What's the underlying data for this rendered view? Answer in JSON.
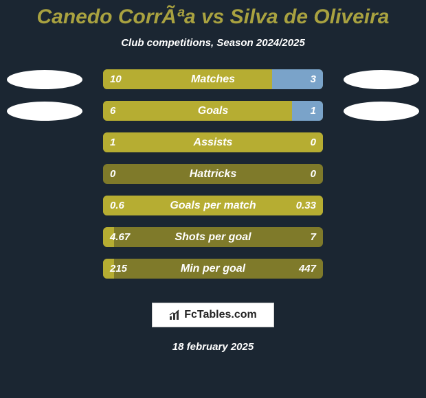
{
  "background_color": "#1b2632",
  "title_color": "#a9a240",
  "title": "Canedo CorrÃªa vs Silva de Oliveira",
  "subtitle": "Club competitions, Season 2024/2025",
  "bar_track_color": "#7f7a2a",
  "left_fill_color": "#b6ad32",
  "right_fill_color": "#7aa3c9",
  "rows": [
    {
      "label": "Matches",
      "left": "10",
      "right": "3",
      "left_pct": 77,
      "right_pct": 23,
      "ellipses": true
    },
    {
      "label": "Goals",
      "left": "6",
      "right": "1",
      "left_pct": 86,
      "right_pct": 14,
      "ellipses": true
    },
    {
      "label": "Assists",
      "left": "1",
      "right": "0",
      "left_pct": 100,
      "right_pct": 0,
      "ellipses": false
    },
    {
      "label": "Hattricks",
      "left": "0",
      "right": "0",
      "left_pct": 0,
      "right_pct": 0,
      "ellipses": false
    },
    {
      "label": "Goals per match",
      "left": "0.6",
      "right": "0.33",
      "left_pct": 100,
      "right_pct": 0,
      "ellipses": false
    },
    {
      "label": "Shots per goal",
      "left": "4.67",
      "right": "7",
      "left_pct": 5,
      "right_pct": 0,
      "ellipses": false
    },
    {
      "label": "Min per goal",
      "left": "215",
      "right": "447",
      "left_pct": 5,
      "right_pct": 0,
      "ellipses": false
    }
  ],
  "logo_text": "FcTables.com",
  "date": "18 february 2025"
}
